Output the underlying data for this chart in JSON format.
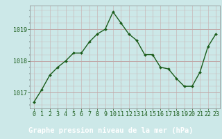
{
  "x": [
    0,
    1,
    2,
    3,
    4,
    5,
    6,
    7,
    8,
    9,
    10,
    11,
    12,
    13,
    14,
    15,
    16,
    17,
    18,
    19,
    20,
    21,
    22,
    23
  ],
  "y": [
    1016.7,
    1017.1,
    1017.55,
    1017.8,
    1018.0,
    1018.25,
    1018.25,
    1018.6,
    1018.85,
    1019.0,
    1019.55,
    1019.2,
    1018.85,
    1018.65,
    1018.2,
    1018.2,
    1017.8,
    1017.75,
    1017.45,
    1017.2,
    1017.2,
    1017.65,
    1018.45,
    1018.85
  ],
  "line_color": "#1a5c1a",
  "marker_color": "#1a5c1a",
  "bg_color": "#cce8e8",
  "plot_bg_color": "#cce8e8",
  "grid_color_x": "#c8b8b8",
  "grid_color_y_major": "#c0a8a8",
  "xlabel": "Graphe pression niveau de la mer (hPa)",
  "xlabel_color": "#1a5c1a",
  "tick_color": "#1a5c1a",
  "bottom_bar_color": "#4a7a4a",
  "ylim": [
    1016.5,
    1019.75
  ],
  "yticks": [
    1017,
    1018,
    1019
  ],
  "xticks": [
    0,
    1,
    2,
    3,
    4,
    5,
    6,
    7,
    8,
    9,
    10,
    11,
    12,
    13,
    14,
    15,
    16,
    17,
    18,
    19,
    20,
    21,
    22,
    23
  ],
  "xlabel_fontsize": 7.5,
  "tick_fontsize": 6
}
